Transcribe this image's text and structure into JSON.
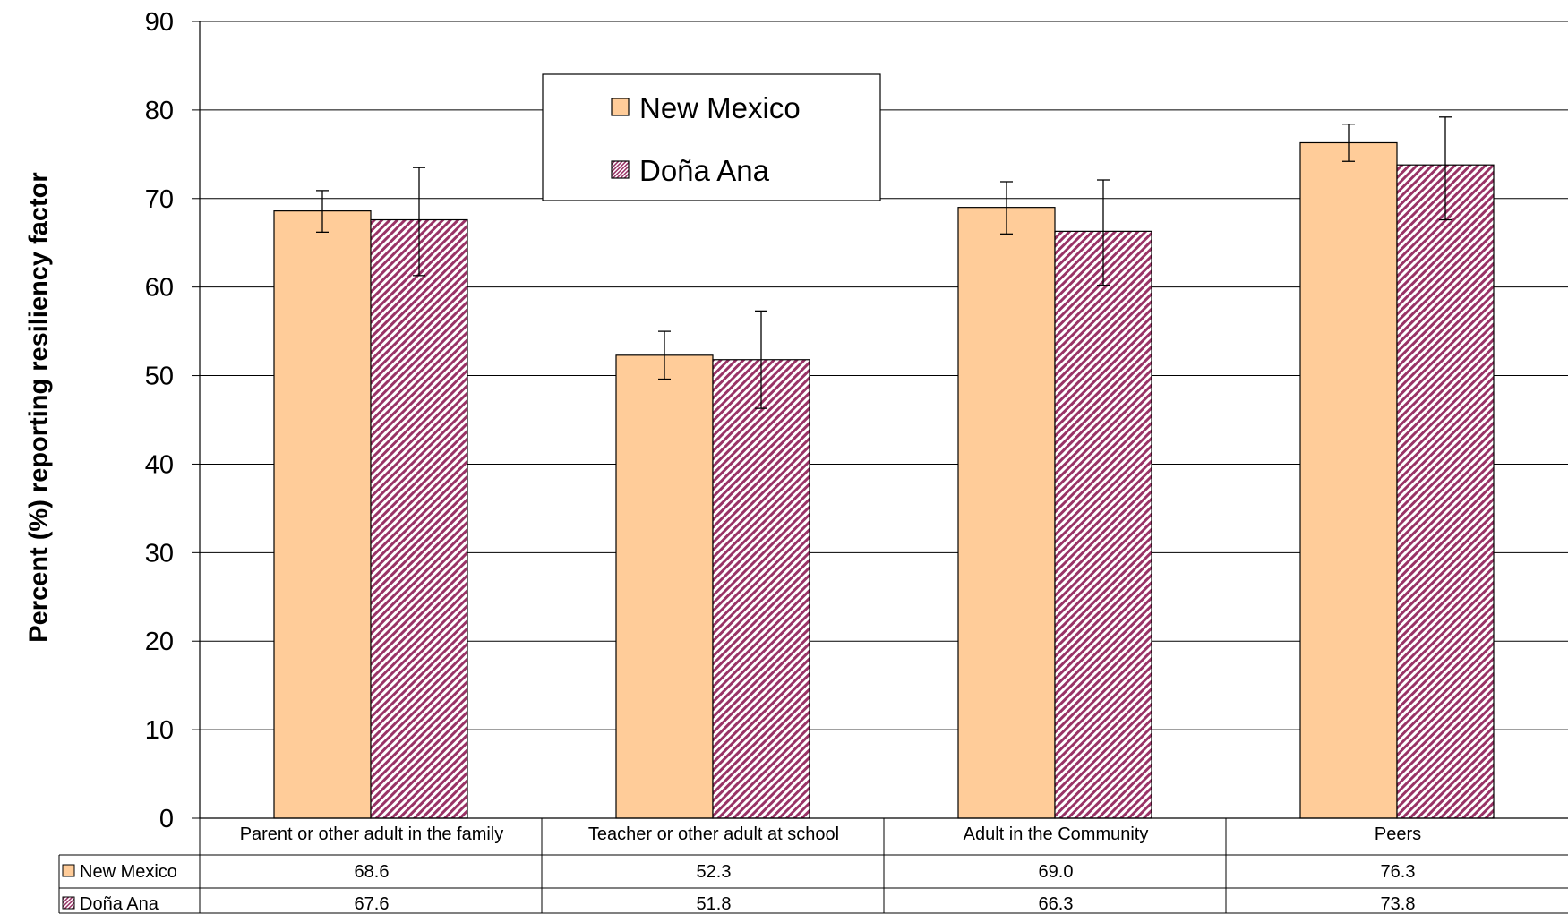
{
  "chart_data": {
    "type": "bar",
    "categories": [
      "Parent or other adult in the family",
      "Teacher or other adult at school",
      "Adult in the Community",
      "Peers"
    ],
    "series": [
      {
        "name": "New Mexico",
        "values": [
          68.6,
          52.3,
          69.0,
          76.3
        ],
        "error_low": [
          66.2,
          49.6,
          66.0,
          74.2
        ],
        "error_high": [
          70.9,
          55.0,
          71.9,
          78.4
        ],
        "color": "#FFCC99",
        "pattern": "solid"
      },
      {
        "name": "Doña Ana",
        "values": [
          67.6,
          51.8,
          66.3,
          73.8
        ],
        "error_low": [
          61.3,
          46.3,
          60.2,
          67.6
        ],
        "error_high": [
          73.5,
          57.3,
          72.1,
          79.2
        ],
        "color": "#993366",
        "pattern": "diagonal-hatch"
      }
    ],
    "table_values": [
      [
        "68.6",
        "52.3",
        "69.0",
        "76.3"
      ],
      [
        "67.6",
        "51.8",
        "66.3",
        "73.8"
      ]
    ],
    "ylabel": "Percent (%)  reporting resiliency factor",
    "xlabel": "",
    "ylim": [
      0,
      90
    ],
    "yticks": [
      0,
      10,
      20,
      30,
      40,
      50,
      60,
      70,
      80,
      90
    ],
    "grid": true,
    "legend_position": "top-center",
    "data_table": true
  }
}
